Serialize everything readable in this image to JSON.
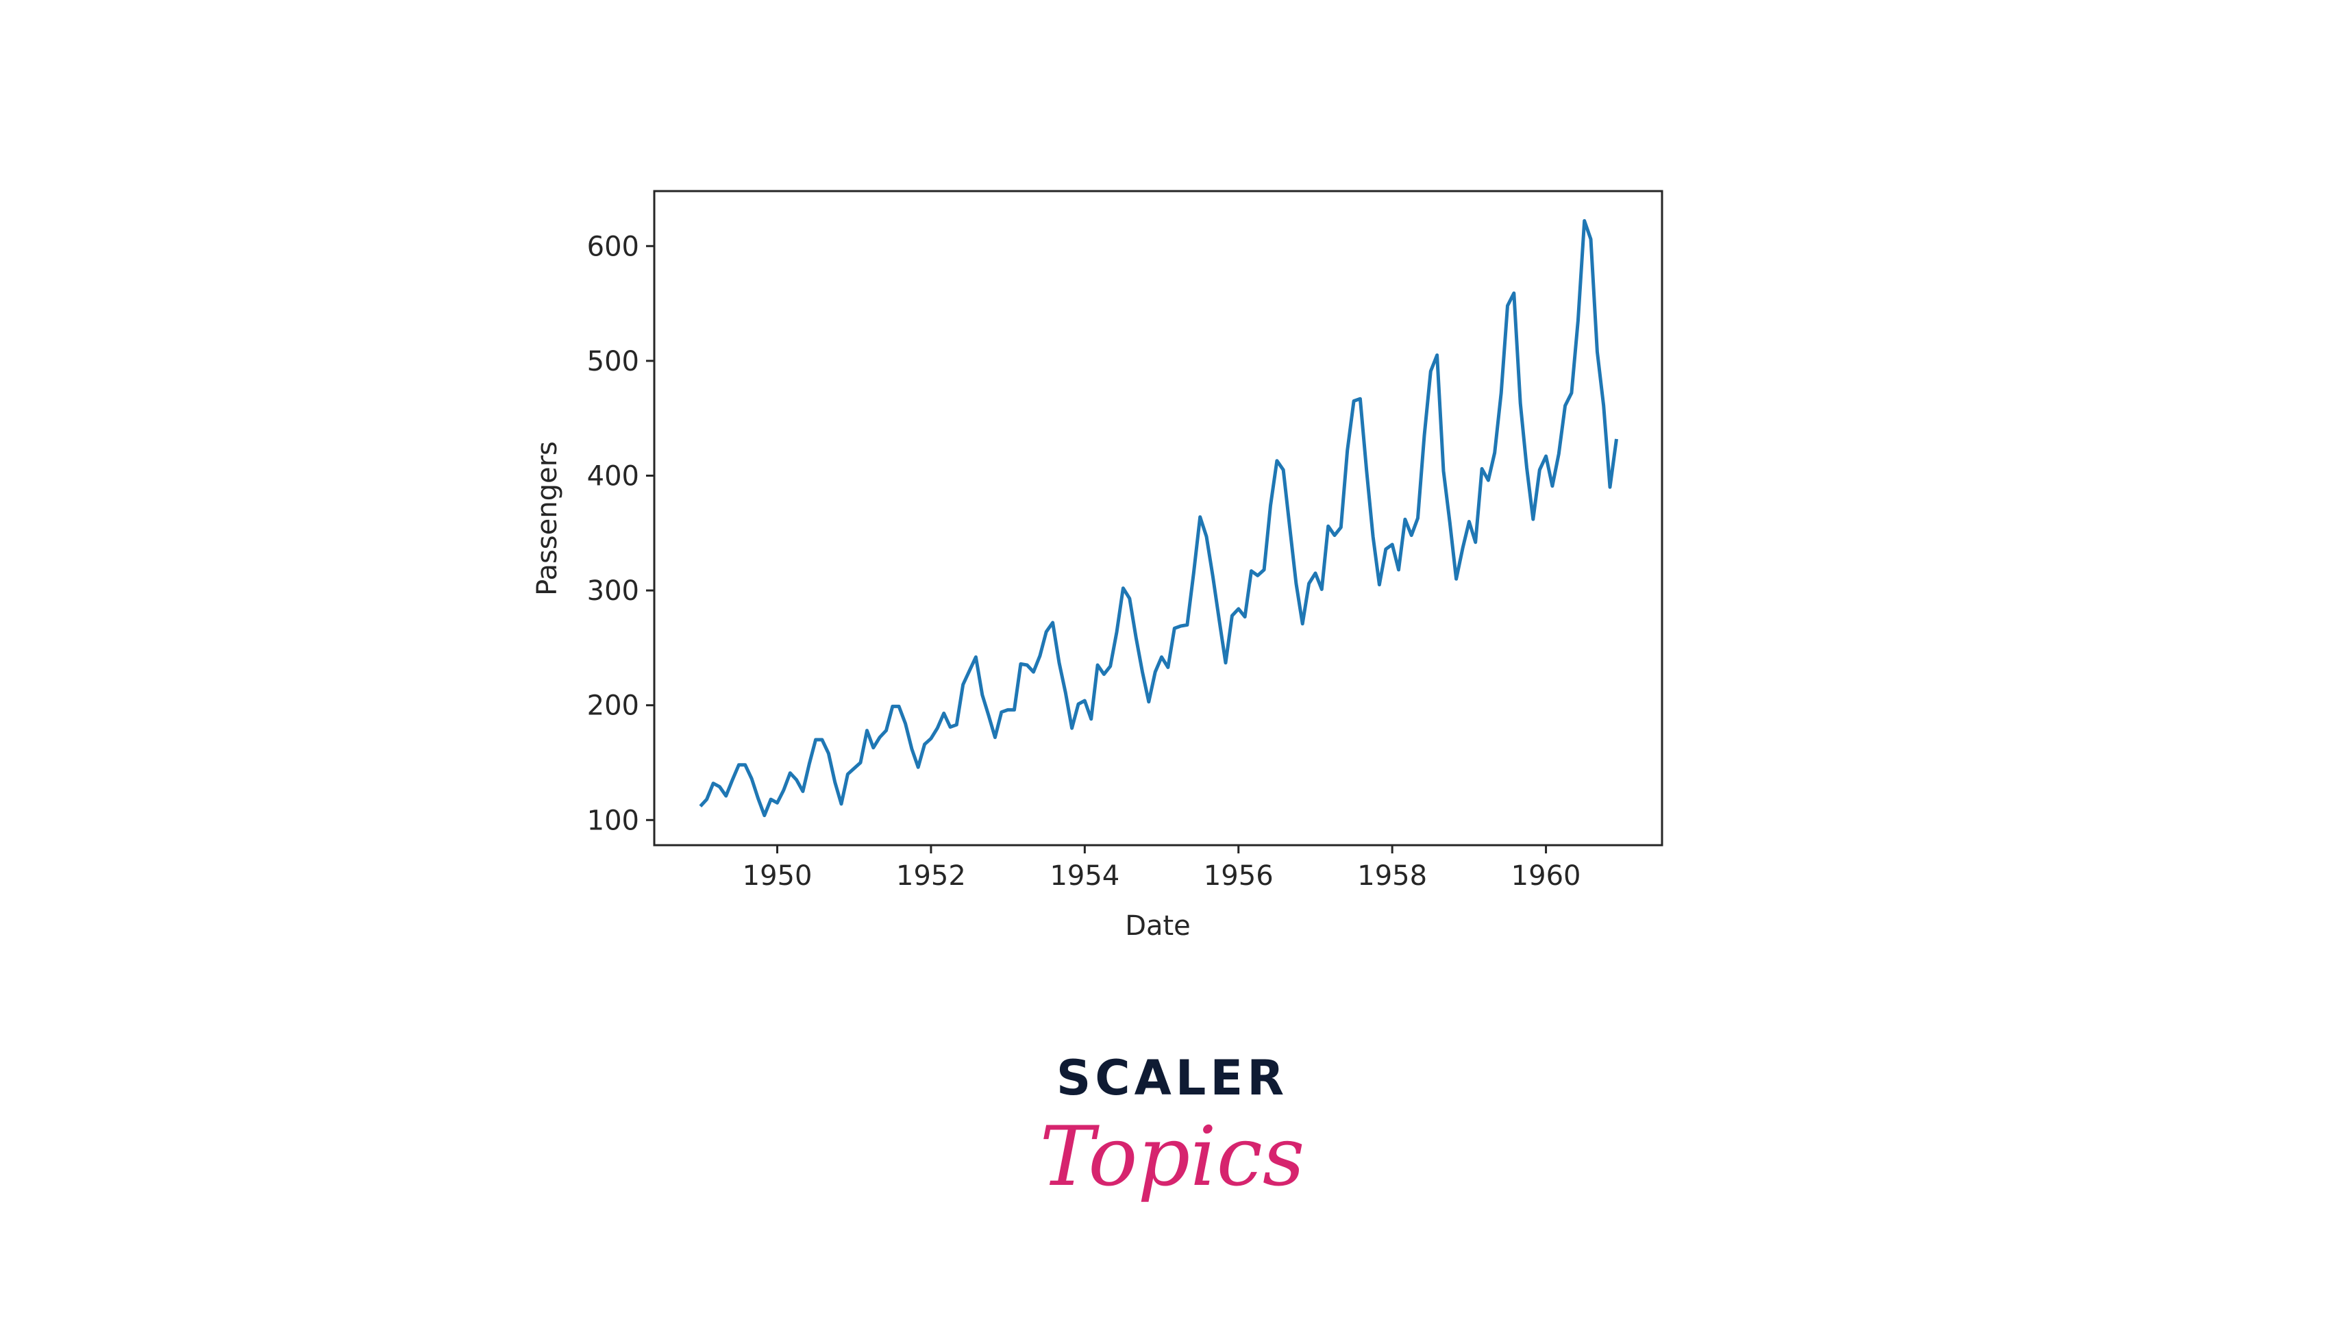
{
  "chart_data": {
    "type": "line",
    "xlabel": "Date",
    "ylabel": "Passengers",
    "x": [
      1949,
      1949.083,
      1949.167,
      1949.25,
      1949.333,
      1949.417,
      1949.5,
      1949.583,
      1949.667,
      1949.75,
      1949.833,
      1949.917,
      1950,
      1950.083,
      1950.167,
      1950.25,
      1950.333,
      1950.417,
      1950.5,
      1950.583,
      1950.667,
      1950.75,
      1950.833,
      1950.917,
      1951,
      1951.083,
      1951.167,
      1951.25,
      1951.333,
      1951.417,
      1951.5,
      1951.583,
      1951.667,
      1951.75,
      1951.833,
      1951.917,
      1952,
      1952.083,
      1952.167,
      1952.25,
      1952.333,
      1952.417,
      1952.5,
      1952.583,
      1952.667,
      1952.75,
      1952.833,
      1952.917,
      1953,
      1953.083,
      1953.167,
      1953.25,
      1953.333,
      1953.417,
      1953.5,
      1953.583,
      1953.667,
      1953.75,
      1953.833,
      1953.917,
      1954,
      1954.083,
      1954.167,
      1954.25,
      1954.333,
      1954.417,
      1954.5,
      1954.583,
      1954.667,
      1954.75,
      1954.833,
      1954.917,
      1955,
      1955.083,
      1955.167,
      1955.25,
      1955.333,
      1955.417,
      1955.5,
      1955.583,
      1955.667,
      1955.75,
      1955.833,
      1955.917,
      1956,
      1956.083,
      1956.167,
      1956.25,
      1956.333,
      1956.417,
      1956.5,
      1956.583,
      1956.667,
      1956.75,
      1956.833,
      1956.917,
      1957,
      1957.083,
      1957.167,
      1957.25,
      1957.333,
      1957.417,
      1957.5,
      1957.583,
      1957.667,
      1957.75,
      1957.833,
      1957.917,
      1958,
      1958.083,
      1958.167,
      1958.25,
      1958.333,
      1958.417,
      1958.5,
      1958.583,
      1958.667,
      1958.75,
      1958.833,
      1958.917,
      1959,
      1959.083,
      1959.167,
      1959.25,
      1959.333,
      1959.417,
      1959.5,
      1959.583,
      1959.667,
      1959.75,
      1959.833,
      1959.917,
      1960,
      1960.083,
      1960.167,
      1960.25,
      1960.333,
      1960.417,
      1960.5,
      1960.583,
      1960.667,
      1960.75,
      1960.833,
      1960.917
    ],
    "series": [
      {
        "color": "#1f77b4",
        "values": [
          112,
          118,
          132,
          129,
          121,
          135,
          148,
          148,
          136,
          119,
          104,
          118,
          115,
          126,
          141,
          135,
          125,
          149,
          170,
          170,
          158,
          133,
          114,
          140,
          145,
          150,
          178,
          163,
          172,
          178,
          199,
          199,
          184,
          162,
          146,
          166,
          171,
          180,
          193,
          181,
          183,
          218,
          230,
          242,
          209,
          191,
          172,
          194,
          196,
          196,
          236,
          235,
          229,
          243,
          264,
          272,
          237,
          211,
          180,
          201,
          204,
          188,
          235,
          227,
          234,
          264,
          302,
          293,
          259,
          229,
          203,
          229,
          242,
          233,
          267,
          269,
          270,
          315,
          364,
          347,
          312,
          274,
          237,
          278,
          284,
          277,
          317,
          313,
          318,
          374,
          413,
          405,
          355,
          306,
          271,
          306,
          315,
          301,
          356,
          348,
          355,
          422,
          465,
          467,
          404,
          347,
          305,
          336,
          340,
          318,
          362,
          348,
          363,
          435,
          491,
          505,
          404,
          359,
          310,
          337,
          360,
          342,
          406,
          396,
          420,
          472,
          548,
          559,
          463,
          407,
          362,
          405,
          417,
          391,
          419,
          461,
          472,
          535,
          622,
          606,
          508,
          461,
          390,
          432
        ]
      }
    ],
    "xlim": [
      1948.4,
      1961.51
    ],
    "xticks": [
      1950,
      1952,
      1954,
      1956,
      1958,
      1960
    ],
    "ylim": [
      78.1,
      647.9
    ],
    "yticks": [
      100,
      200,
      300,
      400,
      500,
      600
    ],
    "grid": false
  },
  "logo": {
    "brand": "SCALER",
    "sub": "Topics"
  }
}
